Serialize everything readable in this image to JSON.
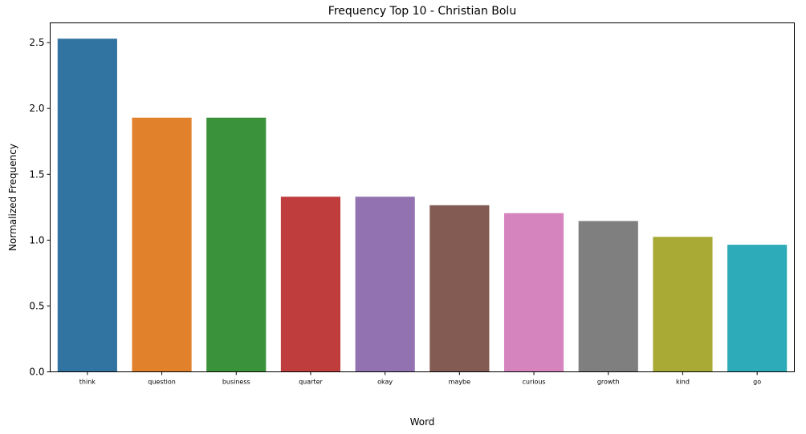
{
  "chart_data": {
    "type": "bar",
    "title": "Frequency Top 10 - Christian Bolu",
    "xlabel": "Word",
    "ylabel": "Normalized Frequency",
    "ylim": [
      0,
      2.65
    ],
    "yticks": [
      "0.0",
      "0.5",
      "1.0",
      "1.5",
      "2.0",
      "2.5"
    ],
    "grid": false,
    "categories": [
      "think",
      "question",
      "business",
      "quarter",
      "okay",
      "maybe",
      "curious",
      "growth",
      "kind",
      "go"
    ],
    "values": [
      2.53,
      1.93,
      1.93,
      1.33,
      1.33,
      1.265,
      1.205,
      1.145,
      1.025,
      0.965
    ],
    "colors": [
      "#3274a1",
      "#e1812c",
      "#3a923a",
      "#c03d3e",
      "#9372b2",
      "#845b53",
      "#d684bd",
      "#7f7f7f",
      "#a9aa35",
      "#2eabb8"
    ]
  }
}
